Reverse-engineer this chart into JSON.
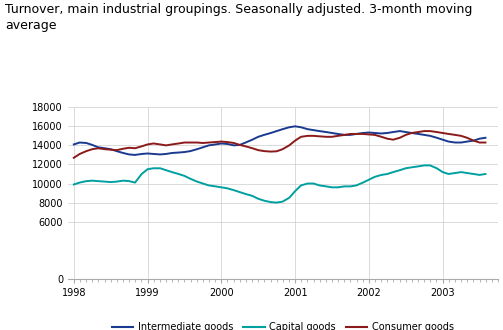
{
  "title": "Turnover, main industrial groupings. Seasonally adjusted. 3-month moving\naverage",
  "title_fontsize": 9.0,
  "background_color": "#ffffff",
  "plot_bg_color": "#ffffff",
  "grid_color": "#cccccc",
  "xlim": [
    1997.92,
    2003.75
  ],
  "ylim": [
    0,
    18000
  ],
  "yticks": [
    0,
    6000,
    8000,
    10000,
    12000,
    14000,
    16000,
    18000
  ],
  "xtick_labels": [
    "1998",
    "1999",
    "2000",
    "2001",
    "2002",
    "2003"
  ],
  "xtick_positions": [
    1998,
    1999,
    2000,
    2001,
    2002,
    2003
  ],
  "legend_labels": [
    "Intermediate goods",
    "Capital goods",
    "Consumer goods"
  ],
  "legend_colors": [
    "#1a3a8f",
    "#00a0a0",
    "#8b1a1a"
  ],
  "line_width": 1.4,
  "intermediate_goods": {
    "color": "#1a3a8f",
    "x": [
      1998.0,
      1998.08,
      1998.17,
      1998.25,
      1998.33,
      1998.42,
      1998.5,
      1998.58,
      1998.67,
      1998.75,
      1998.83,
      1998.92,
      1999.0,
      1999.08,
      1999.17,
      1999.25,
      1999.33,
      1999.42,
      1999.5,
      1999.58,
      1999.67,
      1999.75,
      1999.83,
      1999.92,
      2000.0,
      2000.08,
      2000.17,
      2000.25,
      2000.33,
      2000.42,
      2000.5,
      2000.58,
      2000.67,
      2000.75,
      2000.83,
      2000.92,
      2001.0,
      2001.08,
      2001.17,
      2001.25,
      2001.33,
      2001.42,
      2001.5,
      2001.58,
      2001.67,
      2001.75,
      2001.83,
      2001.92,
      2002.0,
      2002.08,
      2002.17,
      2002.25,
      2002.33,
      2002.42,
      2002.5,
      2002.58,
      2002.67,
      2002.75,
      2002.83,
      2002.92,
      2003.0,
      2003.08,
      2003.17,
      2003.25,
      2003.33,
      2003.42,
      2003.5,
      2003.58
    ],
    "y": [
      14100,
      14300,
      14250,
      14050,
      13800,
      13700,
      13600,
      13400,
      13200,
      13050,
      13000,
      13100,
      13150,
      13100,
      13050,
      13100,
      13200,
      13250,
      13300,
      13400,
      13600,
      13800,
      14000,
      14100,
      14200,
      14150,
      14000,
      14050,
      14300,
      14600,
      14900,
      15100,
      15300,
      15500,
      15700,
      15900,
      16000,
      15900,
      15700,
      15600,
      15500,
      15400,
      15300,
      15200,
      15100,
      15100,
      15200,
      15300,
      15350,
      15300,
      15250,
      15300,
      15400,
      15500,
      15400,
      15300,
      15200,
      15100,
      15000,
      14800,
      14600,
      14400,
      14300,
      14300,
      14400,
      14500,
      14700,
      14800
    ]
  },
  "capital_goods": {
    "color": "#00a0a0",
    "x": [
      1998.0,
      1998.08,
      1998.17,
      1998.25,
      1998.33,
      1998.42,
      1998.5,
      1998.58,
      1998.67,
      1998.75,
      1998.83,
      1998.92,
      1999.0,
      1999.08,
      1999.17,
      1999.25,
      1999.33,
      1999.42,
      1999.5,
      1999.58,
      1999.67,
      1999.75,
      1999.83,
      1999.92,
      2000.0,
      2000.08,
      2000.17,
      2000.25,
      2000.33,
      2000.42,
      2000.5,
      2000.58,
      2000.67,
      2000.75,
      2000.83,
      2000.92,
      2001.0,
      2001.08,
      2001.17,
      2001.25,
      2001.33,
      2001.42,
      2001.5,
      2001.58,
      2001.67,
      2001.75,
      2001.83,
      2001.92,
      2002.0,
      2002.08,
      2002.17,
      2002.25,
      2002.33,
      2002.42,
      2002.5,
      2002.58,
      2002.67,
      2002.75,
      2002.83,
      2002.92,
      2003.0,
      2003.08,
      2003.17,
      2003.25,
      2003.33,
      2003.42,
      2003.5,
      2003.58
    ],
    "y": [
      9900,
      10100,
      10250,
      10300,
      10250,
      10200,
      10150,
      10200,
      10300,
      10250,
      10100,
      11000,
      11500,
      11600,
      11600,
      11400,
      11200,
      11000,
      10800,
      10500,
      10200,
      10000,
      9800,
      9700,
      9600,
      9500,
      9300,
      9100,
      8900,
      8700,
      8400,
      8200,
      8050,
      8000,
      8100,
      8500,
      9200,
      9800,
      10000,
      10000,
      9800,
      9700,
      9600,
      9600,
      9700,
      9700,
      9800,
      10100,
      10400,
      10700,
      10900,
      11000,
      11200,
      11400,
      11600,
      11700,
      11800,
      11900,
      11900,
      11600,
      11200,
      11000,
      11100,
      11200,
      11100,
      11000,
      10900,
      11000
    ]
  },
  "consumer_goods": {
    "color": "#8b1a1a",
    "x": [
      1998.0,
      1998.08,
      1998.17,
      1998.25,
      1998.33,
      1998.42,
      1998.5,
      1998.58,
      1998.67,
      1998.75,
      1998.83,
      1998.92,
      1999.0,
      1999.08,
      1999.17,
      1999.25,
      1999.33,
      1999.42,
      1999.5,
      1999.58,
      1999.67,
      1999.75,
      1999.83,
      1999.92,
      2000.0,
      2000.08,
      2000.17,
      2000.25,
      2000.33,
      2000.42,
      2000.5,
      2000.58,
      2000.67,
      2000.75,
      2000.83,
      2000.92,
      2001.0,
      2001.08,
      2001.17,
      2001.25,
      2001.33,
      2001.42,
      2001.5,
      2001.58,
      2001.67,
      2001.75,
      2001.83,
      2001.92,
      2002.0,
      2002.08,
      2002.17,
      2002.25,
      2002.33,
      2002.42,
      2002.5,
      2002.58,
      2002.67,
      2002.75,
      2002.83,
      2002.92,
      2003.0,
      2003.08,
      2003.17,
      2003.25,
      2003.33,
      2003.42,
      2003.5,
      2003.58
    ],
    "y": [
      12700,
      13100,
      13400,
      13600,
      13700,
      13600,
      13550,
      13500,
      13650,
      13750,
      13700,
      13900,
      14100,
      14200,
      14100,
      14000,
      14100,
      14200,
      14300,
      14300,
      14300,
      14250,
      14300,
      14350,
      14400,
      14350,
      14250,
      14050,
      13900,
      13700,
      13500,
      13400,
      13350,
      13380,
      13600,
      14000,
      14500,
      14900,
      15000,
      15000,
      14950,
      14900,
      14900,
      15000,
      15100,
      15200,
      15200,
      15200,
      15150,
      15100,
      14900,
      14700,
      14600,
      14800,
      15100,
      15300,
      15400,
      15500,
      15500,
      15400,
      15300,
      15200,
      15100,
      15000,
      14800,
      14500,
      14300,
      14300
    ]
  }
}
